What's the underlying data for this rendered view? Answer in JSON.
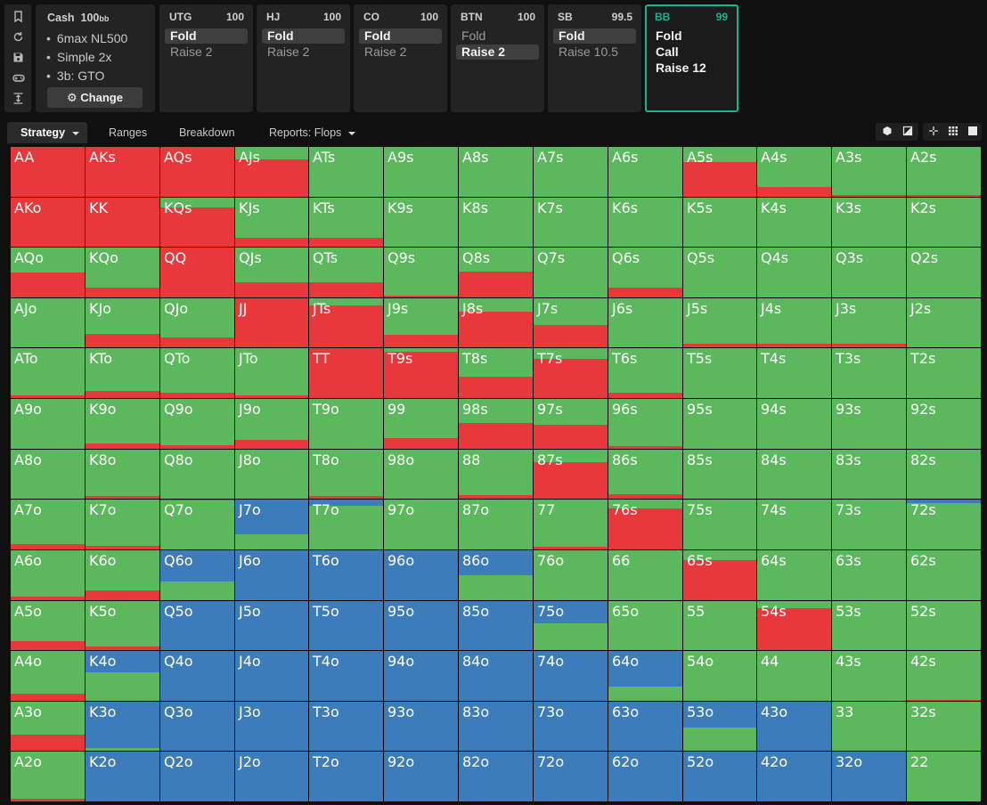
{
  "rail": {
    "icons": [
      "bookmark-icon",
      "reset-icon",
      "save-icon",
      "gamepad-icon",
      "collapse-icon"
    ]
  },
  "info": {
    "game": "Cash",
    "stack": "100",
    "stack_unit": "bb",
    "lines": [
      "6max NL500",
      "Simple 2x",
      "3b: GTO"
    ],
    "change_label": "Change"
  },
  "positions": [
    {
      "name": "UTG",
      "stack": "100",
      "actions": [
        {
          "label": "Fold",
          "selected": true
        },
        {
          "label": "Raise 2",
          "selected": false
        }
      ]
    },
    {
      "name": "HJ",
      "stack": "100",
      "actions": [
        {
          "label": "Fold",
          "selected": true
        },
        {
          "label": "Raise 2",
          "selected": false
        }
      ]
    },
    {
      "name": "CO",
      "stack": "100",
      "actions": [
        {
          "label": "Fold",
          "selected": true
        },
        {
          "label": "Raise 2",
          "selected": false
        }
      ]
    },
    {
      "name": "BTN",
      "stack": "100",
      "actions": [
        {
          "label": "Fold",
          "selected": false
        },
        {
          "label": "Raise 2",
          "selected": true
        }
      ]
    },
    {
      "name": "SB",
      "stack": "99.5",
      "actions": [
        {
          "label": "Fold",
          "selected": true
        },
        {
          "label": "Raise 10.5",
          "selected": false
        }
      ]
    },
    {
      "name": "BB",
      "stack": "99",
      "active": true,
      "actions": [
        {
          "label": "Fold"
        },
        {
          "label": "Call"
        },
        {
          "label": "Raise 12"
        }
      ]
    }
  ],
  "tabs": [
    "Strategy",
    "Ranges",
    "Breakdown",
    "Reports: Flops"
  ],
  "colors": {
    "call": "#5cb85c",
    "raise": "#e8383b",
    "fold": "#3d7cba",
    "accent": "#19b394"
  },
  "grid": {
    "rows": [
      [
        "AA",
        "AKs",
        "AQs",
        "AJs",
        "ATs",
        "A9s",
        "A8s",
        "A7s",
        "A6s",
        "A5s",
        "A4s",
        "A3s",
        "A2s"
      ],
      [
        "AKo",
        "KK",
        "KQs",
        "KJs",
        "KTs",
        "K9s",
        "K8s",
        "K7s",
        "K6s",
        "K5s",
        "K4s",
        "K3s",
        "K2s"
      ],
      [
        "AQo",
        "KQo",
        "QQ",
        "QJs",
        "QTs",
        "Q9s",
        "Q8s",
        "Q7s",
        "Q6s",
        "Q5s",
        "Q4s",
        "Q3s",
        "Q2s"
      ],
      [
        "AJo",
        "KJo",
        "QJo",
        "JJ",
        "JTs",
        "J9s",
        "J8s",
        "J7s",
        "J6s",
        "J5s",
        "J4s",
        "J3s",
        "J2s"
      ],
      [
        "ATo",
        "KTo",
        "QTo",
        "JTo",
        "TT",
        "T9s",
        "T8s",
        "T7s",
        "T6s",
        "T5s",
        "T4s",
        "T3s",
        "T2s"
      ],
      [
        "A9o",
        "K9o",
        "Q9o",
        "J9o",
        "T9o",
        "99",
        "98s",
        "97s",
        "96s",
        "95s",
        "94s",
        "93s",
        "92s"
      ],
      [
        "A8o",
        "K8o",
        "Q8o",
        "J8o",
        "T8o",
        "98o",
        "88",
        "87s",
        "86s",
        "85s",
        "84s",
        "83s",
        "82s"
      ],
      [
        "A7o",
        "K7o",
        "Q7o",
        "J7o",
        "T7o",
        "97o",
        "87o",
        "77",
        "76s",
        "75s",
        "74s",
        "73s",
        "72s"
      ],
      [
        "A6o",
        "K6o",
        "Q6o",
        "J6o",
        "T6o",
        "96o",
        "86o",
        "76o",
        "66",
        "65s",
        "64s",
        "63s",
        "62s"
      ],
      [
        "A5o",
        "K5o",
        "Q5o",
        "J5o",
        "T5o",
        "95o",
        "85o",
        "75o",
        "65o",
        "55",
        "54s",
        "53s",
        "52s"
      ],
      [
        "A4o",
        "K4o",
        "Q4o",
        "J4o",
        "T4o",
        "94o",
        "84o",
        "74o",
        "64o",
        "54o",
        "44",
        "43s",
        "42s"
      ],
      [
        "A3o",
        "K3o",
        "Q3o",
        "J3o",
        "T3o",
        "93o",
        "83o",
        "73o",
        "63o",
        "53o",
        "43o",
        "33",
        "32s"
      ],
      [
        "A2o",
        "K2o",
        "Q2o",
        "J2o",
        "T2o",
        "92o",
        "82o",
        "72o",
        "62o",
        "52o",
        "42o",
        "32o",
        "22"
      ]
    ],
    "raise": [
      [
        1.0,
        1.0,
        1.0,
        0.75,
        0,
        0,
        0,
        0,
        0,
        0.7,
        0.2,
        0.04,
        0.03
      ],
      [
        1.0,
        1.0,
        0.8,
        0.18,
        0.18,
        0,
        0,
        0,
        0,
        0,
        0,
        0,
        0
      ],
      [
        0.5,
        0.2,
        1.0,
        0.3,
        0.3,
        0.04,
        0.52,
        0,
        0.2,
        0,
        0,
        0,
        0
      ],
      [
        0,
        0.28,
        0.2,
        1.0,
        0.85,
        0.25,
        0.72,
        0.45,
        0,
        0.08,
        0.08,
        0.08,
        0
      ],
      [
        0.05,
        0.15,
        0.1,
        0.05,
        1.0,
        0.92,
        0.42,
        0.78,
        0.1,
        0,
        0,
        0,
        0
      ],
      [
        0,
        0.1,
        0.08,
        0.18,
        0,
        0.22,
        0.52,
        0.48,
        0.05,
        0,
        0,
        0,
        0
      ],
      [
        0,
        0.05,
        0,
        0,
        0.05,
        0,
        0.08,
        0.75,
        0.1,
        0,
        0,
        0,
        0
      ],
      [
        0.1,
        0.08,
        0,
        0,
        0,
        0,
        0,
        0.05,
        0.82,
        0,
        0,
        0,
        0
      ],
      [
        0.08,
        0.2,
        0,
        0,
        0,
        0,
        0,
        0,
        0,
        0.8,
        0,
        0,
        0
      ],
      [
        0.18,
        0.08,
        0,
        0,
        0,
        0,
        0,
        0,
        0,
        0,
        0.85,
        0,
        0
      ],
      [
        0.15,
        0,
        0,
        0,
        0,
        0,
        0,
        0,
        0,
        0,
        0,
        0,
        0.02
      ],
      [
        0.33,
        0,
        0,
        0,
        0,
        0,
        0,
        0,
        0,
        0,
        0,
        0,
        0
      ],
      [
        0.05,
        0,
        0,
        0,
        0,
        0,
        0,
        0,
        0,
        0,
        0,
        0,
        0
      ]
    ],
    "fold": [
      [
        0,
        0,
        0,
        0,
        0,
        0,
        0,
        0,
        0,
        0,
        0,
        0,
        0
      ],
      [
        0,
        0,
        0,
        0,
        0,
        0,
        0,
        0,
        0,
        0,
        0,
        0,
        0
      ],
      [
        0,
        0,
        0,
        0,
        0,
        0,
        0,
        0,
        0,
        0,
        0,
        0,
        0
      ],
      [
        0,
        0,
        0,
        0,
        0,
        0,
        0,
        0,
        0,
        0,
        0,
        0,
        0
      ],
      [
        0,
        0,
        0,
        0,
        0,
        0,
        0,
        0,
        0,
        0,
        0,
        0,
        0
      ],
      [
        0,
        0,
        0,
        0,
        0,
        0,
        0,
        0,
        0,
        0,
        0,
        0,
        0
      ],
      [
        0,
        0,
        0,
        0,
        0,
        0,
        0,
        0,
        0,
        0,
        0,
        0,
        0
      ],
      [
        0,
        0,
        0.02,
        0.7,
        0.12,
        0,
        0,
        0,
        0,
        0,
        0,
        0,
        0.07
      ],
      [
        0,
        0,
        0.62,
        1.0,
        1.0,
        1.0,
        0.5,
        0,
        0,
        0,
        0,
        0,
        0
      ],
      [
        0,
        0,
        1.0,
        1.0,
        1.0,
        1.0,
        1.0,
        0.45,
        0,
        0,
        0,
        0,
        0
      ],
      [
        0,
        0.42,
        1.0,
        1.0,
        1.0,
        1.0,
        1.0,
        1.0,
        0.72,
        0,
        0,
        0,
        0
      ],
      [
        0,
        0.95,
        1.0,
        1.0,
        1.0,
        1.0,
        1.0,
        1.0,
        1.0,
        0.52,
        1.0,
        0,
        0
      ],
      [
        0,
        1.0,
        1.0,
        1.0,
        1.0,
        1.0,
        1.0,
        1.0,
        1.0,
        1.0,
        1.0,
        1.0,
        0
      ]
    ]
  }
}
